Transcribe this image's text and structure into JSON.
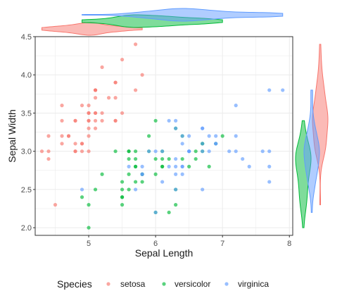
{
  "chart_data": {
    "type": "scatter",
    "xlabel": "Sepal Length",
    "ylabel": "Sepal Width",
    "xlim": [
      4.2,
      8.05
    ],
    "ylim": [
      1.9,
      4.5
    ],
    "x_ticks": [
      "5",
      "6",
      "7",
      "8"
    ],
    "y_ticks": [
      "2.0",
      "2.5",
      "3.0",
      "3.5",
      "4.0",
      "4.5"
    ],
    "grid": true,
    "legend_position": "bottom",
    "legend_title": "Species",
    "marginal_plots": "violin",
    "series": [
      {
        "name": "setosa",
        "color": "#F8766D",
        "points": [
          [
            5.1,
            3.5
          ],
          [
            4.9,
            3.0
          ],
          [
            4.7,
            3.2
          ],
          [
            4.6,
            3.1
          ],
          [
            5.0,
            3.6
          ],
          [
            5.4,
            3.9
          ],
          [
            4.6,
            3.4
          ],
          [
            5.0,
            3.4
          ],
          [
            4.4,
            2.9
          ],
          [
            4.9,
            3.1
          ],
          [
            5.4,
            3.7
          ],
          [
            4.8,
            3.4
          ],
          [
            4.8,
            3.0
          ],
          [
            4.3,
            3.0
          ],
          [
            5.8,
            4.0
          ],
          [
            5.7,
            4.4
          ],
          [
            5.4,
            3.9
          ],
          [
            5.1,
            3.5
          ],
          [
            5.7,
            3.8
          ],
          [
            5.1,
            3.8
          ],
          [
            5.4,
            3.4
          ],
          [
            5.1,
            3.7
          ],
          [
            4.6,
            3.6
          ],
          [
            5.1,
            3.3
          ],
          [
            4.8,
            3.4
          ],
          [
            5.0,
            3.0
          ],
          [
            5.0,
            3.4
          ],
          [
            5.2,
            3.5
          ],
          [
            5.2,
            3.4
          ],
          [
            4.7,
            3.2
          ],
          [
            4.8,
            3.1
          ],
          [
            5.4,
            3.4
          ],
          [
            5.2,
            4.1
          ],
          [
            5.5,
            4.2
          ],
          [
            4.9,
            3.1
          ],
          [
            5.0,
            3.2
          ],
          [
            5.5,
            3.5
          ],
          [
            4.9,
            3.6
          ],
          [
            4.4,
            3.0
          ],
          [
            5.1,
            3.4
          ],
          [
            5.0,
            3.5
          ],
          [
            4.5,
            2.3
          ],
          [
            4.4,
            3.2
          ],
          [
            5.0,
            3.5
          ],
          [
            5.1,
            3.8
          ],
          [
            4.8,
            3.0
          ],
          [
            5.1,
            3.8
          ],
          [
            4.6,
            3.2
          ],
          [
            5.3,
            3.7
          ],
          [
            5.0,
            3.3
          ]
        ]
      },
      {
        "name": "versicolor",
        "color": "#00BA38",
        "points": [
          [
            7.0,
            3.2
          ],
          [
            6.4,
            3.2
          ],
          [
            6.9,
            3.1
          ],
          [
            5.5,
            2.3
          ],
          [
            6.5,
            2.8
          ],
          [
            5.7,
            2.8
          ],
          [
            6.3,
            3.3
          ],
          [
            4.9,
            2.4
          ],
          [
            6.6,
            2.9
          ],
          [
            5.2,
            2.7
          ],
          [
            5.0,
            2.0
          ],
          [
            5.9,
            3.0
          ],
          [
            6.0,
            2.2
          ],
          [
            6.1,
            2.9
          ],
          [
            5.6,
            2.9
          ],
          [
            6.7,
            3.1
          ],
          [
            5.6,
            3.0
          ],
          [
            5.8,
            2.7
          ],
          [
            6.2,
            2.2
          ],
          [
            5.6,
            2.5
          ],
          [
            5.9,
            3.2
          ],
          [
            6.1,
            2.8
          ],
          [
            6.3,
            2.5
          ],
          [
            6.1,
            2.8
          ],
          [
            6.4,
            2.9
          ],
          [
            6.6,
            3.0
          ],
          [
            6.8,
            2.8
          ],
          [
            6.7,
            3.0
          ],
          [
            6.0,
            2.9
          ],
          [
            5.7,
            2.6
          ],
          [
            5.5,
            2.4
          ],
          [
            5.5,
            2.4
          ],
          [
            5.8,
            2.7
          ],
          [
            6.0,
            2.7
          ],
          [
            5.4,
            3.0
          ],
          [
            6.0,
            3.4
          ],
          [
            6.7,
            3.1
          ],
          [
            6.3,
            2.3
          ],
          [
            5.6,
            3.0
          ],
          [
            5.5,
            2.5
          ],
          [
            5.5,
            2.6
          ],
          [
            6.1,
            3.0
          ],
          [
            5.8,
            2.6
          ],
          [
            5.0,
            2.3
          ],
          [
            5.6,
            2.7
          ],
          [
            5.7,
            3.0
          ],
          [
            5.7,
            2.9
          ],
          [
            6.2,
            2.9
          ],
          [
            5.1,
            2.5
          ],
          [
            5.7,
            2.8
          ]
        ]
      },
      {
        "name": "virginica",
        "color": "#619CFF",
        "points": [
          [
            6.3,
            3.3
          ],
          [
            5.8,
            2.7
          ],
          [
            7.1,
            3.0
          ],
          [
            6.3,
            2.9
          ],
          [
            6.5,
            3.0
          ],
          [
            7.6,
            3.0
          ],
          [
            4.9,
            2.5
          ],
          [
            7.3,
            2.9
          ],
          [
            6.7,
            2.5
          ],
          [
            7.2,
            3.6
          ],
          [
            6.5,
            3.2
          ],
          [
            6.4,
            2.7
          ],
          [
            6.8,
            3.0
          ],
          [
            5.7,
            2.5
          ],
          [
            5.8,
            2.8
          ],
          [
            6.4,
            3.2
          ],
          [
            6.5,
            3.0
          ],
          [
            7.7,
            3.8
          ],
          [
            7.7,
            2.6
          ],
          [
            6.0,
            2.2
          ],
          [
            6.9,
            3.2
          ],
          [
            5.6,
            2.8
          ],
          [
            7.7,
            2.8
          ],
          [
            6.3,
            2.7
          ],
          [
            6.7,
            3.3
          ],
          [
            7.2,
            3.2
          ],
          [
            6.2,
            2.8
          ],
          [
            6.1,
            3.0
          ],
          [
            6.4,
            2.8
          ],
          [
            7.2,
            3.0
          ],
          [
            7.4,
            2.8
          ],
          [
            7.9,
            3.8
          ],
          [
            6.4,
            2.8
          ],
          [
            6.3,
            2.8
          ],
          [
            6.1,
            2.6
          ],
          [
            7.7,
            3.0
          ],
          [
            6.3,
            3.4
          ],
          [
            6.4,
            3.1
          ],
          [
            6.0,
            3.0
          ],
          [
            6.9,
            3.1
          ],
          [
            6.7,
            3.1
          ],
          [
            6.9,
            3.1
          ],
          [
            5.8,
            2.7
          ],
          [
            6.8,
            3.2
          ],
          [
            6.7,
            3.3
          ],
          [
            6.7,
            3.0
          ],
          [
            6.3,
            2.5
          ],
          [
            6.5,
            3.0
          ],
          [
            6.2,
            3.4
          ],
          [
            5.9,
            3.0
          ]
        ]
      }
    ]
  }
}
